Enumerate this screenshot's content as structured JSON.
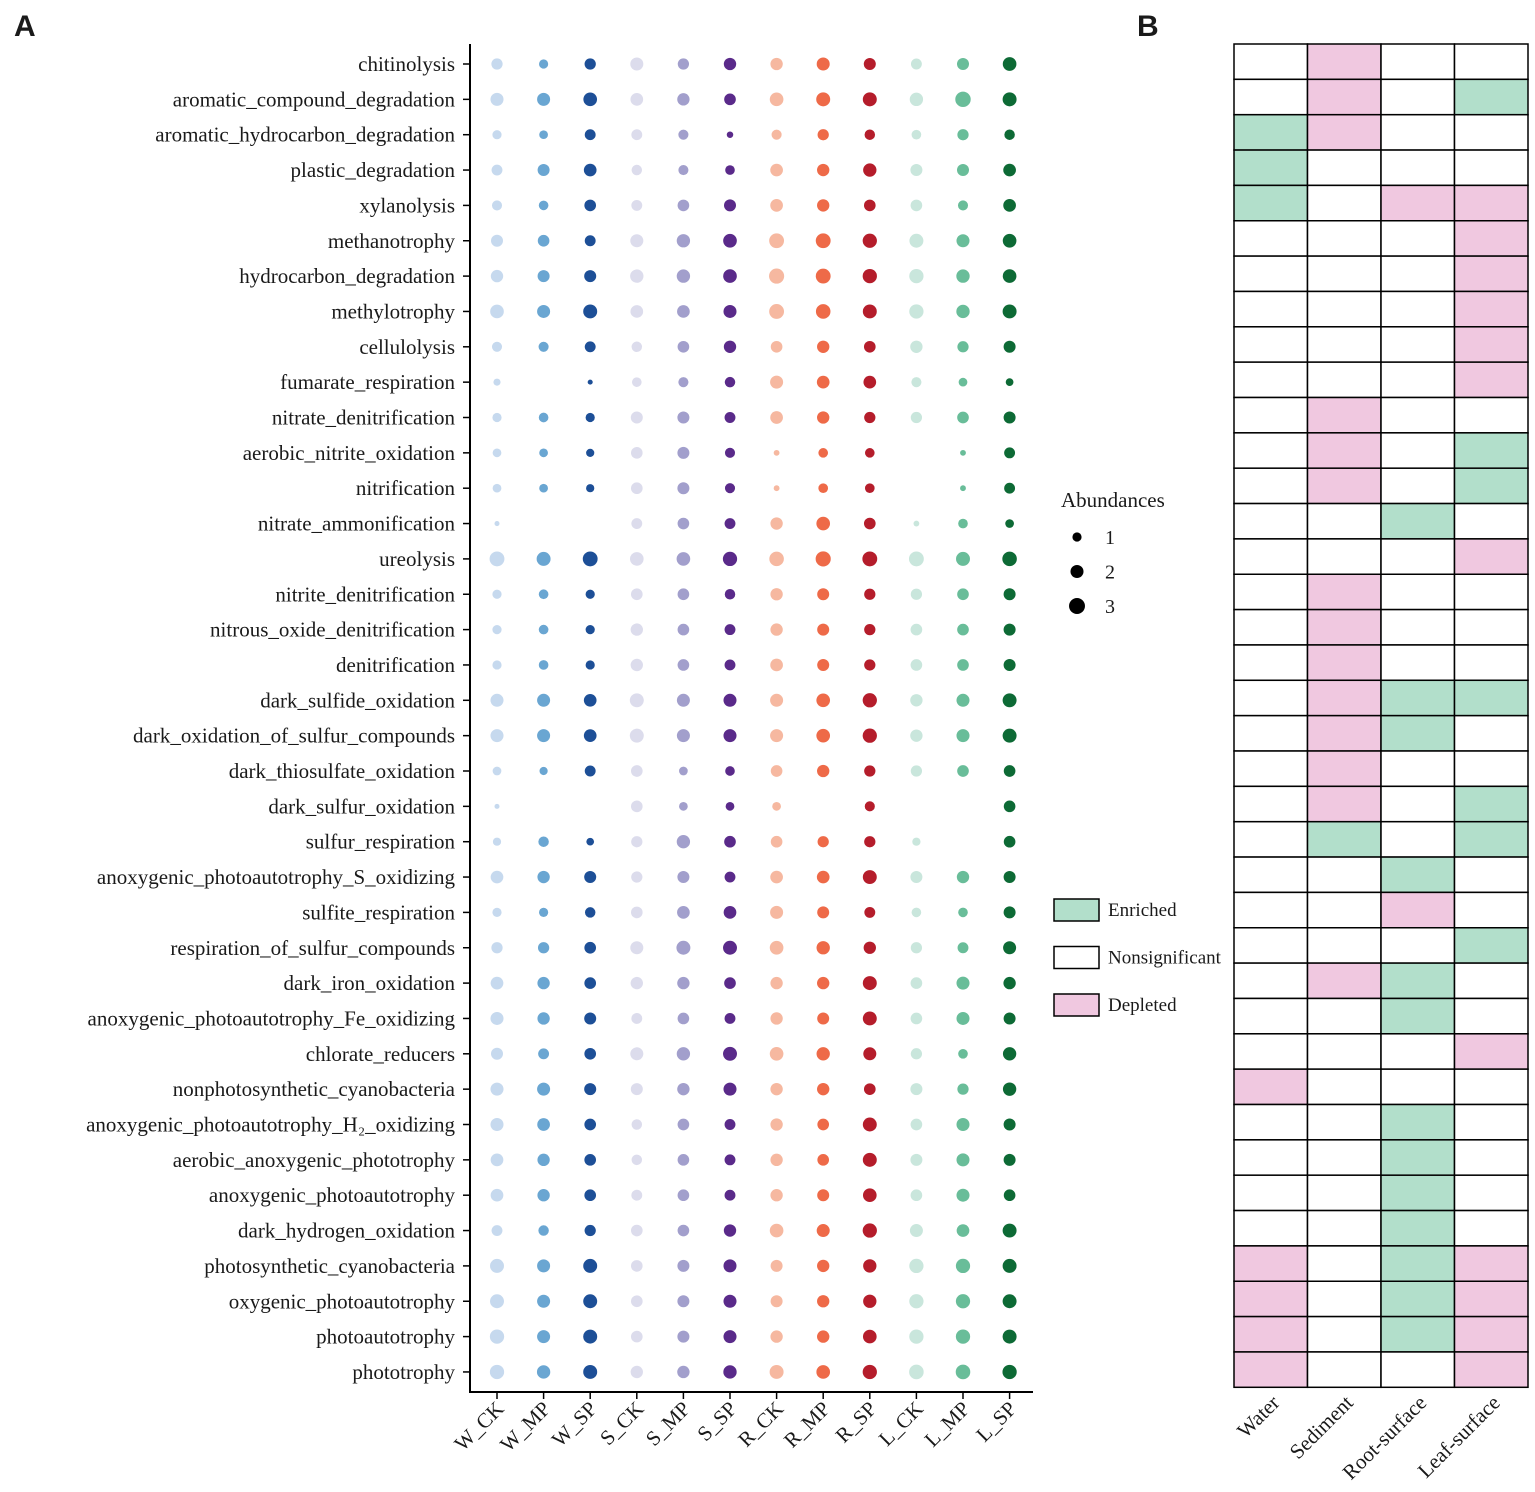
{
  "panels": {
    "a": "A",
    "b": "B"
  },
  "colors": {
    "W": [
      "#c6d9ee",
      "#6aa6d2",
      "#1d4f97"
    ],
    "S": [
      "#dcdcec",
      "#a29fcc",
      "#5a2a8a"
    ],
    "R": [
      "#f6b8a0",
      "#ee6a48",
      "#b51d2b"
    ],
    "L": [
      "#c9e6dc",
      "#69bd99",
      "#0d6a35"
    ],
    "enriched": "#b2dfcb",
    "depleted": "#f0c8e0",
    "nonsignificant": "#ffffff"
  },
  "chart_data": [
    {
      "type": "scatter",
      "subtype": "bubble",
      "title": "",
      "xlabel": "",
      "ylabel": "",
      "x_categories": [
        "W_CK",
        "W_MP",
        "W_SP",
        "S_CK",
        "S_MP",
        "S_SP",
        "R_CK",
        "R_MP",
        "R_SP",
        "L_CK",
        "L_MP",
        "L_SP"
      ],
      "y_categories": [
        "chitinolysis",
        "aromatic_compound_degradation",
        "aromatic_hydrocarbon_degradation",
        "plastic_degradation",
        "xylanolysis",
        "methanotrophy",
        "hydrocarbon_degradation",
        "methylotrophy",
        "cellulolysis",
        "fumarate_respiration",
        "nitrate_denitrification",
        "aerobic_nitrite_oxidation",
        "nitrification",
        "nitrate_ammonification",
        "ureolysis",
        "nitrite_denitrification",
        "nitrous_oxide_denitrification",
        "denitrification",
        "dark_sulfide_oxidation",
        "dark_oxidation_of_sulfur_compounds",
        "dark_thiosulfate_oxidation",
        "dark_sulfur_oxidation",
        "sulfur_respiration",
        "anoxygenic_photoautotrophy_S_oxidizing",
        "sulfite_respiration",
        "respiration_of_sulfur_compounds",
        "dark_iron_oxidation",
        "anoxygenic_photoautotrophy_Fe_oxidizing",
        "chlorate_reducers",
        "nonphotosynthetic_cyanobacteria",
        "anoxygenic_photoautotrophy_H₂_oxidizing",
        "aerobic_anoxygenic_phototrophy",
        "anoxygenic_photoautotrophy",
        "dark_hydrogen_oxidation",
        "photosynthetic_cyanobacteria",
        "oxygenic_photoautotrophy",
        "photoautotrophy",
        "phototrophy"
      ],
      "size_legend": {
        "title": "Abundances",
        "values": [
          1,
          2,
          3
        ]
      },
      "abundance": [
        [
          1.5,
          1.0,
          1.5,
          2.0,
          1.5,
          1.8,
          1.8,
          2.0,
          1.7,
          1.4,
          1.7,
          2.2
        ],
        [
          2.0,
          2.0,
          2.2,
          1.9,
          1.8,
          1.6,
          2.2,
          2.3,
          2.3,
          2.1,
          2.8,
          2.3
        ],
        [
          1.0,
          0.9,
          1.4,
          1.4,
          1.2,
          0.5,
          1.2,
          1.5,
          1.3,
          1.1,
          1.5,
          1.3
        ],
        [
          1.4,
          1.7,
          1.9,
          1.3,
          1.2,
          1.1,
          1.9,
          1.8,
          2.1,
          1.7,
          1.7,
          1.9
        ],
        [
          1.2,
          1.1,
          1.6,
          1.4,
          1.6,
          1.7,
          1.9,
          1.8,
          1.6,
          1.6,
          1.2,
          1.9
        ],
        [
          1.7,
          1.6,
          1.4,
          2.0,
          2.1,
          2.2,
          2.6,
          2.6,
          2.4,
          2.3,
          2.0,
          2.2
        ],
        [
          1.8,
          1.7,
          1.7,
          2.1,
          2.1,
          2.2,
          2.7,
          2.6,
          2.4,
          2.4,
          2.1,
          2.2
        ],
        [
          2.2,
          2.0,
          2.3,
          1.9,
          1.9,
          2.0,
          2.6,
          2.5,
          2.3,
          2.4,
          2.1,
          2.3
        ],
        [
          1.2,
          1.2,
          1.4,
          1.3,
          1.6,
          1.8,
          1.6,
          1.8,
          1.6,
          1.8,
          1.5,
          1.7
        ],
        [
          0.6,
          0.0,
          0.3,
          1.1,
          1.2,
          1.3,
          2.0,
          1.9,
          1.9,
          1.2,
          0.9,
          0.7
        ],
        [
          1.0,
          1.1,
          1.0,
          1.7,
          1.7,
          1.4,
          1.9,
          1.8,
          1.5,
          1.5,
          1.6,
          1.7
        ],
        [
          0.9,
          0.9,
          0.8,
          1.6,
          1.7,
          1.2,
          0.4,
          1.1,
          1.1,
          0.0,
          0.4,
          1.4
        ],
        [
          0.9,
          0.9,
          0.8,
          1.6,
          1.7,
          1.2,
          0.4,
          1.1,
          1.1,
          0.0,
          0.4,
          1.4
        ],
        [
          0.3,
          0.0,
          0.0,
          1.4,
          1.6,
          1.4,
          1.8,
          2.2,
          1.6,
          0.4,
          1.1,
          0.9
        ],
        [
          2.6,
          2.3,
          2.6,
          2.2,
          2.2,
          2.4,
          2.5,
          2.7,
          2.6,
          2.6,
          2.3,
          2.5
        ],
        [
          1.0,
          1.1,
          1.0,
          1.6,
          1.6,
          1.3,
          1.8,
          1.7,
          1.5,
          1.5,
          1.6,
          1.7
        ],
        [
          1.0,
          1.1,
          1.0,
          1.8,
          1.6,
          1.4,
          1.8,
          1.7,
          1.5,
          1.6,
          1.6,
          1.7
        ],
        [
          1.0,
          1.1,
          1.0,
          1.8,
          1.6,
          1.4,
          1.9,
          1.7,
          1.5,
          1.6,
          1.6,
          1.7
        ],
        [
          2.0,
          2.0,
          1.9,
          2.3,
          2.0,
          2.0,
          2.0,
          2.2,
          2.4,
          1.8,
          2.0,
          2.3
        ],
        [
          2.0,
          2.0,
          1.9,
          2.3,
          2.0,
          2.0,
          2.0,
          2.2,
          2.4,
          1.8,
          2.0,
          2.3
        ],
        [
          0.9,
          0.8,
          1.4,
          1.6,
          0.9,
          1.1,
          1.6,
          1.8,
          1.5,
          1.5,
          1.6,
          1.6
        ],
        [
          0.3,
          0.0,
          0.0,
          1.6,
          0.9,
          0.9,
          0.9,
          0.0,
          1.2,
          0.0,
          0.0,
          1.6
        ],
        [
          0.8,
          1.3,
          0.7,
          1.5,
          2.1,
          1.6,
          1.6,
          1.5,
          1.5,
          0.8,
          0.0,
          1.6
        ],
        [
          1.9,
          1.8,
          1.7,
          1.5,
          1.7,
          1.4,
          1.9,
          1.9,
          2.3,
          1.7,
          1.8,
          1.7
        ],
        [
          1.0,
          1.0,
          1.3,
          1.6,
          1.9,
          1.9,
          2.0,
          1.7,
          1.4,
          1.1,
          1.1,
          1.7
        ],
        [
          1.5,
          1.5,
          1.6,
          2.0,
          2.3,
          2.3,
          2.2,
          2.1,
          1.8,
          1.5,
          1.4,
          2.0
        ],
        [
          1.9,
          1.8,
          1.6,
          1.8,
          1.8,
          1.6,
          1.8,
          1.8,
          2.3,
          1.6,
          2.0,
          1.8
        ],
        [
          2.0,
          1.8,
          1.7,
          1.4,
          1.6,
          1.4,
          1.8,
          1.7,
          2.3,
          1.6,
          2.0,
          1.7
        ],
        [
          1.7,
          1.4,
          1.6,
          2.0,
          2.1,
          2.3,
          2.2,
          2.1,
          2.0,
          1.5,
          1.1,
          2.1
        ],
        [
          2.0,
          2.0,
          1.7,
          1.7,
          1.8,
          2.0,
          1.8,
          1.8,
          1.6,
          1.7,
          1.5,
          2.1
        ],
        [
          2.0,
          1.9,
          1.6,
          1.3,
          1.6,
          1.4,
          1.8,
          1.6,
          2.3,
          1.6,
          2.0,
          1.7
        ],
        [
          1.9,
          1.8,
          1.6,
          1.3,
          1.6,
          1.4,
          1.8,
          1.6,
          2.3,
          1.7,
          2.0,
          1.7
        ],
        [
          1.9,
          1.8,
          1.6,
          1.4,
          1.6,
          1.4,
          1.8,
          1.7,
          2.2,
          1.6,
          2.0,
          1.6
        ],
        [
          1.4,
          1.3,
          1.5,
          1.6,
          1.6,
          1.8,
          2.2,
          2.0,
          2.4,
          2.0,
          1.9,
          2.3
        ],
        [
          2.3,
          2.0,
          2.3,
          1.6,
          1.7,
          2.0,
          1.7,
          1.8,
          2.1,
          2.4,
          2.4,
          2.3
        ],
        [
          2.3,
          2.0,
          2.3,
          1.6,
          1.7,
          2.0,
          1.7,
          1.8,
          2.1,
          2.4,
          2.4,
          2.3
        ],
        [
          2.4,
          2.0,
          2.3,
          1.6,
          1.7,
          2.0,
          1.8,
          1.8,
          2.2,
          2.4,
          2.4,
          2.3
        ],
        [
          2.4,
          2.1,
          2.3,
          1.8,
          1.8,
          2.1,
          2.3,
          2.2,
          2.4,
          2.5,
          2.5,
          2.4
        ]
      ]
    },
    {
      "type": "heatmap",
      "title": "",
      "x_categories": [
        "Water",
        "Sediment",
        "Root-surface",
        "Leaf-surface"
      ],
      "legend": [
        {
          "key": "E",
          "label": "Enriched"
        },
        {
          "key": "N",
          "label": "Nonsignificant"
        },
        {
          "key": "D",
          "label": "Depleted"
        }
      ],
      "status": [
        [
          "N",
          "D",
          "N",
          "N"
        ],
        [
          "N",
          "D",
          "N",
          "E"
        ],
        [
          "E",
          "D",
          "N",
          "N"
        ],
        [
          "E",
          "N",
          "N",
          "N"
        ],
        [
          "E",
          "N",
          "D",
          "D"
        ],
        [
          "N",
          "N",
          "N",
          "D"
        ],
        [
          "N",
          "N",
          "N",
          "D"
        ],
        [
          "N",
          "N",
          "N",
          "D"
        ],
        [
          "N",
          "N",
          "N",
          "D"
        ],
        [
          "N",
          "N",
          "N",
          "D"
        ],
        [
          "N",
          "D",
          "N",
          "N"
        ],
        [
          "N",
          "D",
          "N",
          "E"
        ],
        [
          "N",
          "D",
          "N",
          "E"
        ],
        [
          "N",
          "N",
          "E",
          "N"
        ],
        [
          "N",
          "N",
          "N",
          "D"
        ],
        [
          "N",
          "D",
          "N",
          "N"
        ],
        [
          "N",
          "D",
          "N",
          "N"
        ],
        [
          "N",
          "D",
          "N",
          "N"
        ],
        [
          "N",
          "D",
          "E",
          "E"
        ],
        [
          "N",
          "D",
          "E",
          "N"
        ],
        [
          "N",
          "D",
          "N",
          "N"
        ],
        [
          "N",
          "D",
          "N",
          "E"
        ],
        [
          "N",
          "E",
          "N",
          "E"
        ],
        [
          "N",
          "N",
          "E",
          "N"
        ],
        [
          "N",
          "N",
          "D",
          "N"
        ],
        [
          "N",
          "N",
          "N",
          "E"
        ],
        [
          "N",
          "D",
          "E",
          "N"
        ],
        [
          "N",
          "N",
          "E",
          "N"
        ],
        [
          "N",
          "N",
          "N",
          "D"
        ],
        [
          "D",
          "N",
          "N",
          "N"
        ],
        [
          "N",
          "N",
          "E",
          "N"
        ],
        [
          "N",
          "N",
          "E",
          "N"
        ],
        [
          "N",
          "N",
          "E",
          "N"
        ],
        [
          "N",
          "N",
          "E",
          "N"
        ],
        [
          "D",
          "N",
          "E",
          "D"
        ],
        [
          "D",
          "N",
          "E",
          "D"
        ],
        [
          "D",
          "N",
          "E",
          "D"
        ],
        [
          "D",
          "N",
          "N",
          "D"
        ]
      ]
    }
  ]
}
